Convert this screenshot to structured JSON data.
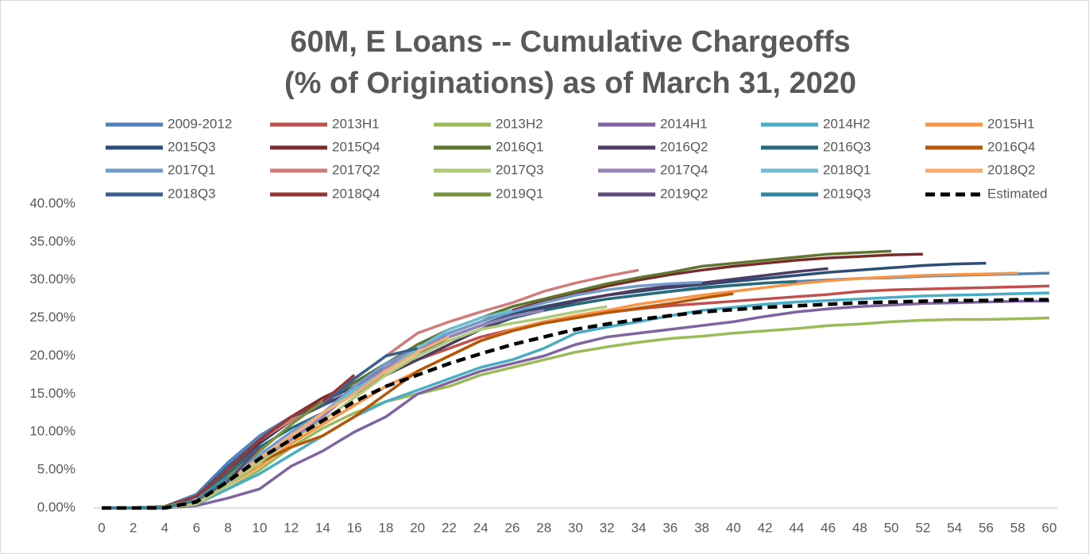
{
  "chart_data": {
    "type": "line",
    "title": [
      "60M, E Loans -- Cumulative Chargeoffs",
      "(% of Originations) as of March 31, 2020"
    ],
    "x": [
      0,
      2,
      4,
      6,
      8,
      10,
      12,
      14,
      16,
      18,
      20,
      22,
      24,
      26,
      28,
      30,
      32,
      34,
      36,
      38,
      40,
      42,
      44,
      46,
      48,
      50,
      52,
      54,
      56,
      58,
      60
    ],
    "xlim": [
      0,
      60
    ],
    "xticks": [
      0,
      2,
      4,
      6,
      8,
      10,
      12,
      14,
      16,
      18,
      20,
      22,
      24,
      26,
      28,
      30,
      32,
      34,
      36,
      38,
      40,
      42,
      44,
      46,
      48,
      50,
      52,
      54,
      56,
      58,
      60
    ],
    "ylim": [
      0,
      40
    ],
    "yticks": [
      {
        "value": 0,
        "label": "0.00%"
      },
      {
        "value": 5,
        "label": "5.00%"
      },
      {
        "value": 10,
        "label": "10.00%"
      },
      {
        "value": 15,
        "label": "15.00%"
      },
      {
        "value": 20,
        "label": "20.00%"
      },
      {
        "value": 25,
        "label": "25.00%"
      },
      {
        "value": 30,
        "label": "30.00%"
      },
      {
        "value": 35,
        "label": "35.00%"
      },
      {
        "value": 40,
        "label": "40.00%"
      }
    ],
    "grid": false,
    "legend": "top",
    "series": [
      {
        "name": "2009-2012",
        "color": "#4f81bd",
        "values": [
          0,
          0,
          0.2,
          1.8,
          6,
          9.5,
          12,
          14,
          16.5,
          19,
          21,
          22.5,
          24,
          25,
          26,
          26.8,
          27.5,
          28,
          28.5,
          28.9,
          29.3,
          29.6,
          29.8,
          30,
          30.2,
          30.3,
          30.5,
          30.6,
          30.7,
          30.8,
          30.9
        ]
      },
      {
        "name": "2013H1",
        "color": "#c0504d",
        "values": [
          0,
          0,
          0.2,
          1.5,
          5.5,
          9,
          11.5,
          13.5,
          15.5,
          17.5,
          19.5,
          21,
          22.5,
          23.5,
          24.5,
          25.2,
          25.7,
          26.2,
          26.6,
          26.9,
          27.2,
          27.5,
          27.8,
          28.1,
          28.5,
          28.7,
          28.8,
          28.9,
          29,
          29.1,
          29.2
        ]
      },
      {
        "name": "2013H2",
        "color": "#9bbb59",
        "values": [
          0,
          0,
          0,
          0.5,
          2.5,
          5,
          8,
          10.5,
          12.5,
          14,
          15,
          16,
          17.5,
          18.5,
          19.5,
          20.5,
          21.2,
          21.8,
          22.3,
          22.6,
          23,
          23.3,
          23.6,
          24,
          24.2,
          24.5,
          24.7,
          24.8,
          24.8,
          24.9,
          25
        ]
      },
      {
        "name": "2014H1",
        "color": "#8064a2",
        "values": [
          0,
          0,
          0,
          0.3,
          1.3,
          2.5,
          5.5,
          7.5,
          10,
          12,
          15,
          16.5,
          18,
          19,
          20,
          21.5,
          22.5,
          23,
          23.5,
          24,
          24.5,
          25.2,
          25.8,
          26.2,
          26.5,
          26.7,
          26.9,
          27,
          27.1,
          27.2,
          27.2
        ]
      },
      {
        "name": "2014H2",
        "color": "#4bacc6",
        "values": [
          0,
          0,
          0,
          0.5,
          2.5,
          4.5,
          7,
          9.5,
          12,
          14,
          15.5,
          17,
          18.5,
          19.5,
          21,
          23,
          23.8,
          24.5,
          25.3,
          26,
          26.4,
          26.8,
          27.1,
          27.3,
          27.5,
          27.7,
          27.9,
          28,
          28.1,
          28.2,
          28.3
        ]
      },
      {
        "name": "2015H1",
        "color": "#f79646",
        "values": [
          0,
          0,
          0,
          0.5,
          3,
          5.5,
          8.5,
          11,
          13.5,
          16,
          18,
          20,
          22,
          23.5,
          24.5,
          25.3,
          26,
          26.8,
          27.4,
          28,
          28.5,
          29,
          29.5,
          29.9,
          30.2,
          30.4,
          30.6,
          30.7,
          30.8,
          30.9,
          null
        ]
      },
      {
        "name": "2015Q3",
        "color": "#2c4d75",
        "values": [
          0,
          0,
          0.2,
          1.5,
          5,
          8.5,
          11.5,
          14,
          16,
          18.5,
          20.5,
          22.5,
          24,
          25.5,
          26.5,
          27.3,
          28,
          28.5,
          29,
          29.4,
          29.8,
          30.2,
          30.6,
          31,
          31.3,
          31.6,
          31.9,
          32.1,
          32.2,
          null,
          null
        ]
      },
      {
        "name": "2015Q4",
        "color": "#772c2a",
        "values": [
          0,
          0,
          0.2,
          1.5,
          5,
          9,
          12,
          14.5,
          16.5,
          19,
          21,
          23,
          24.5,
          26,
          27.2,
          28.2,
          29.2,
          30,
          30.7,
          31.3,
          31.8,
          32.2,
          32.6,
          32.9,
          33.1,
          33.3,
          33.4,
          null,
          null,
          null,
          null
        ]
      },
      {
        "name": "2016Q1",
        "color": "#5f7530",
        "values": [
          0,
          0,
          0.2,
          1.5,
          5,
          8.5,
          11.5,
          14,
          16.5,
          19,
          21.5,
          23.5,
          25,
          26.5,
          27.5,
          28.5,
          29.5,
          30.3,
          31,
          31.8,
          32.2,
          32.6,
          33,
          33.4,
          33.6,
          33.8,
          null,
          null,
          null,
          null,
          null
        ]
      },
      {
        "name": "2016Q2",
        "color": "#4d3b62",
        "values": [
          0,
          0,
          0.2,
          1.5,
          5,
          8.5,
          11.5,
          13.5,
          15.5,
          17.5,
          19.5,
          21.5,
          23.5,
          25,
          26.2,
          27.2,
          28,
          28.7,
          29.2,
          29.6,
          30.1,
          30.6,
          31.1,
          31.5,
          null,
          null,
          null,
          null,
          null,
          null,
          null
        ]
      },
      {
        "name": "2016Q3",
        "color": "#276a7c",
        "values": [
          0,
          0,
          0.2,
          1.5,
          4.5,
          8,
          10.5,
          12.5,
          15,
          17.5,
          20,
          22.5,
          24,
          25,
          26,
          26.8,
          27.5,
          28,
          28.5,
          29,
          29.3,
          29.6,
          29.8,
          null,
          null,
          null,
          null,
          null,
          null,
          null,
          null
        ]
      },
      {
        "name": "2016Q4",
        "color": "#b65708",
        "values": [
          0,
          0,
          0,
          0.5,
          3,
          6,
          8,
          9.5,
          12,
          15,
          18,
          20,
          22,
          23.3,
          24.3,
          25,
          25.7,
          26.3,
          26.9,
          27.6,
          28.2,
          null,
          null,
          null,
          null,
          null,
          null,
          null,
          null,
          null,
          null
        ]
      },
      {
        "name": "2017Q1",
        "color": "#729aca",
        "values": [
          0,
          0,
          0.2,
          1,
          4,
          7,
          10,
          12.5,
          16,
          19,
          21,
          23,
          24.5,
          25.8,
          27,
          28,
          28.7,
          29.2,
          29.5,
          29.7,
          null,
          null,
          null,
          null,
          null,
          null,
          null,
          null,
          null,
          null,
          null
        ]
      },
      {
        "name": "2017Q2",
        "color": "#d07c7a",
        "values": [
          0,
          0,
          0.2,
          1.5,
          5,
          9,
          11.5,
          14,
          17,
          20,
          23,
          24.5,
          25.8,
          27,
          28.5,
          29.6,
          30.5,
          31.3,
          null,
          null,
          null,
          null,
          null,
          null,
          null,
          null,
          null,
          null,
          null,
          null,
          null
        ]
      },
      {
        "name": "2017Q3",
        "color": "#afc97a",
        "values": [
          0,
          0,
          0,
          0.5,
          3,
          6,
          9,
          11.5,
          14.5,
          17.5,
          20,
          22,
          23.5,
          24.3,
          25,
          25.8,
          26.5,
          null,
          null,
          null,
          null,
          null,
          null,
          null,
          null,
          null,
          null,
          null,
          null,
          null,
          null
        ]
      },
      {
        "name": "2017Q4",
        "color": "#9983b5",
        "values": [
          0,
          0,
          0,
          1,
          3.5,
          6.5,
          9,
          12,
          15.5,
          18.5,
          21,
          22.5,
          24,
          25.2,
          26,
          null,
          null,
          null,
          null,
          null,
          null,
          null,
          null,
          null,
          null,
          null,
          null,
          null,
          null,
          null,
          null
        ]
      },
      {
        "name": "2018Q1",
        "color": "#6fbdd1",
        "values": [
          0,
          0,
          0,
          1,
          3.5,
          6.5,
          9.5,
          12.5,
          15.5,
          18,
          21,
          23.5,
          25,
          26,
          null,
          null,
          null,
          null,
          null,
          null,
          null,
          null,
          null,
          null,
          null,
          null,
          null,
          null,
          null,
          null,
          null
        ]
      },
      {
        "name": "2018Q2",
        "color": "#f9ab6b",
        "values": [
          0,
          0,
          0,
          0.8,
          3.5,
          6.5,
          9.5,
          12.5,
          15,
          18,
          20.5,
          22.5,
          null,
          null,
          null,
          null,
          null,
          null,
          null,
          null,
          null,
          null,
          null,
          null,
          null,
          null,
          null,
          null,
          null,
          null,
          null
        ]
      },
      {
        "name": "2018Q3",
        "color": "#3a5f8f",
        "values": [
          0,
          0,
          0.2,
          1.5,
          5.5,
          9,
          12,
          13.5,
          17,
          20,
          21,
          null,
          null,
          null,
          null,
          null,
          null,
          null,
          null,
          null,
          null,
          null,
          null,
          null,
          null,
          null,
          null,
          null,
          null,
          null,
          null
        ]
      },
      {
        "name": "2018Q4",
        "color": "#953735",
        "values": [
          0,
          0,
          0.2,
          1.5,
          5,
          9,
          12,
          14,
          17.5,
          null,
          null,
          null,
          null,
          null,
          null,
          null,
          null,
          null,
          null,
          null,
          null,
          null,
          null,
          null,
          null,
          null,
          null,
          null,
          null,
          null,
          null
        ]
      },
      {
        "name": "2019Q1",
        "color": "#77923c",
        "values": [
          0,
          0,
          0.2,
          1,
          4,
          7.5,
          11,
          14,
          null,
          null,
          null,
          null,
          null,
          null,
          null,
          null,
          null,
          null,
          null,
          null,
          null,
          null,
          null,
          null,
          null,
          null,
          null,
          null,
          null,
          null,
          null
        ]
      },
      {
        "name": "2019Q2",
        "color": "#604a7b",
        "values": [
          0,
          0,
          0,
          1,
          3.5,
          8,
          null,
          null,
          null,
          null,
          null,
          null,
          null,
          null,
          null,
          null,
          null,
          null,
          null,
          null,
          null,
          null,
          null,
          null,
          null,
          null,
          null,
          null,
          null,
          null,
          null
        ]
      },
      {
        "name": "2019Q3",
        "color": "#31859c",
        "values": [
          0,
          0,
          0,
          1,
          4,
          null,
          null,
          null,
          null,
          null,
          null,
          null,
          null,
          null,
          null,
          null,
          null,
          null,
          null,
          null,
          null,
          null,
          null,
          null,
          null,
          null,
          null,
          null,
          null,
          null,
          null
        ]
      },
      {
        "name": "Estimated",
        "color": "#000000",
        "dashed": true,
        "values": [
          0,
          0,
          0,
          0.8,
          3.5,
          6.5,
          9,
          11.5,
          14,
          16,
          17.5,
          19,
          20.3,
          21.5,
          22.5,
          23.5,
          24.2,
          24.8,
          25.3,
          25.8,
          26.1,
          26.4,
          26.6,
          26.8,
          27,
          27.1,
          27.2,
          27.3,
          27.3,
          27.4,
          27.4
        ]
      }
    ]
  }
}
